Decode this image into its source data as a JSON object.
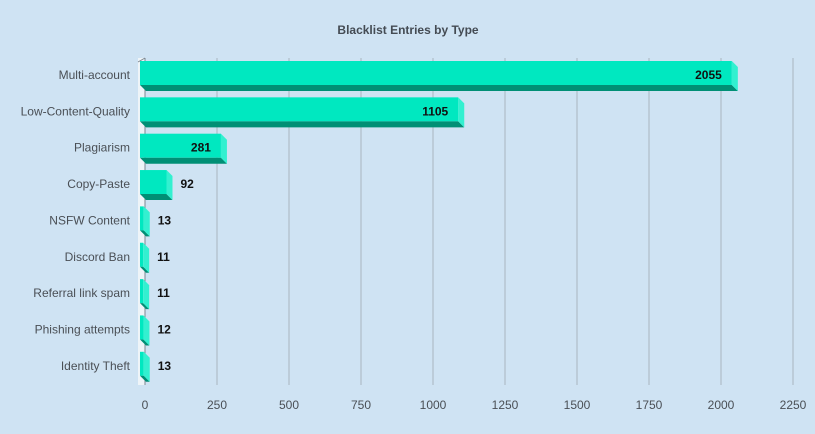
{
  "chart_data": {
    "type": "bar",
    "orientation": "horizontal",
    "title": "Blacklist Entries by Type",
    "categories": [
      "Multi-account",
      "Low-Content-Quality",
      "Plagiarism",
      "Copy-Paste",
      "NSFW Content",
      "Discord Ban",
      "Referral link spam",
      "Phishing attempts",
      "Identity Theft"
    ],
    "values": [
      2055,
      1105,
      281,
      92,
      13,
      11,
      11,
      12,
      13
    ],
    "xlim": [
      0,
      2250
    ],
    "xticks": [
      0,
      250,
      500,
      750,
      1000,
      1250,
      1500,
      1750,
      2000,
      2250
    ],
    "grid": true,
    "legend": "none",
    "colors": {
      "bar_face": "#00e8c0",
      "bar_top": "#33f0d0",
      "bar_side": "#008f75",
      "background": "#cfe3f3",
      "grid": "#a9b5bf"
    }
  }
}
